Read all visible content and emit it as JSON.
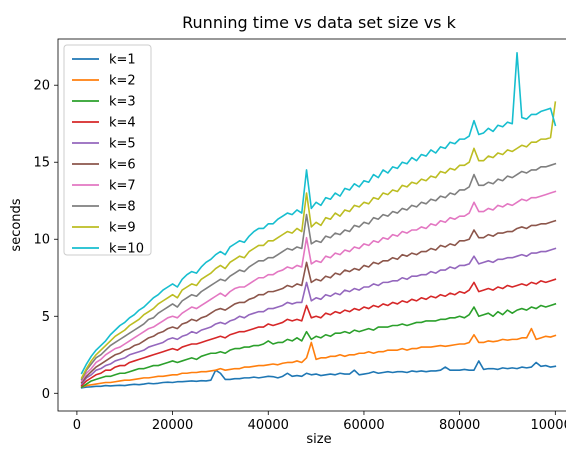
{
  "chart_data": {
    "type": "line",
    "title": "Running time vs data set size vs k",
    "xlabel": "size",
    "ylabel": "seconds",
    "xlim": [
      -3950,
      104950
    ],
    "ylim": [
      -1.15,
      23.0
    ],
    "xticks": [
      0,
      20000,
      40000,
      60000,
      80000,
      100000
    ],
    "yticks": [
      0,
      5,
      10,
      15,
      20
    ],
    "grid": false,
    "legend_position": "top-left",
    "x": [
      1000,
      2000,
      3000,
      4000,
      5000,
      6000,
      7000,
      8000,
      9000,
      10000,
      11000,
      12000,
      13000,
      14000,
      15000,
      16000,
      17000,
      18000,
      19000,
      20000,
      21000,
      22000,
      23000,
      24000,
      25000,
      26000,
      27000,
      28000,
      29000,
      30000,
      31000,
      32000,
      33000,
      34000,
      35000,
      36000,
      37000,
      38000,
      39000,
      40000,
      41000,
      42000,
      43000,
      44000,
      45000,
      46000,
      47000,
      48000,
      49000,
      50000,
      51000,
      52000,
      53000,
      54000,
      55000,
      56000,
      57000,
      58000,
      59000,
      60000,
      61000,
      62000,
      63000,
      64000,
      65000,
      66000,
      67000,
      68000,
      69000,
      70000,
      71000,
      72000,
      73000,
      74000,
      75000,
      76000,
      77000,
      78000,
      79000,
      80000,
      81000,
      82000,
      83000,
      84000,
      85000,
      86000,
      87000,
      88000,
      89000,
      90000,
      91000,
      92000,
      93000,
      94000,
      95000,
      96000,
      97000,
      98000,
      99000,
      100000
    ],
    "series": [
      {
        "name": "k=1",
        "color": "#1f77b4",
        "values": [
          0.35,
          0.4,
          0.42,
          0.45,
          0.45,
          0.5,
          0.48,
          0.5,
          0.52,
          0.5,
          0.55,
          0.58,
          0.56,
          0.6,
          0.65,
          0.62,
          0.65,
          0.7,
          0.72,
          0.7,
          0.75,
          0.75,
          0.78,
          0.8,
          0.78,
          0.82,
          0.8,
          0.85,
          1.5,
          1.3,
          0.9,
          0.9,
          0.95,
          0.95,
          1.0,
          1.0,
          1.05,
          1.0,
          1.05,
          1.1,
          1.08,
          1.0,
          1.1,
          1.3,
          1.1,
          1.15,
          1.1,
          1.3,
          1.2,
          1.25,
          1.15,
          1.2,
          1.25,
          1.2,
          1.3,
          1.25,
          1.25,
          1.5,
          1.2,
          1.25,
          1.3,
          1.4,
          1.3,
          1.35,
          1.4,
          1.35,
          1.4,
          1.4,
          1.35,
          1.45,
          1.4,
          1.45,
          1.4,
          1.45,
          1.45,
          1.5,
          1.7,
          1.5,
          1.5,
          1.5,
          1.55,
          1.5,
          1.5,
          2.1,
          1.55,
          1.6,
          1.6,
          1.55,
          1.65,
          1.6,
          1.65,
          1.6,
          1.7,
          1.65,
          1.7,
          2.0,
          1.75,
          1.8,
          1.7,
          1.75
        ]
      },
      {
        "name": "k=2",
        "color": "#ff7f0e",
        "values": [
          0.4,
          0.5,
          0.55,
          0.6,
          0.65,
          0.7,
          0.7,
          0.75,
          0.8,
          0.85,
          0.85,
          0.9,
          0.95,
          1.0,
          1.0,
          1.05,
          1.1,
          1.1,
          1.15,
          1.2,
          1.2,
          1.3,
          1.3,
          1.35,
          1.35,
          1.4,
          1.4,
          1.45,
          1.5,
          1.6,
          1.5,
          1.55,
          1.6,
          1.6,
          1.7,
          1.7,
          1.75,
          1.8,
          1.8,
          1.85,
          1.9,
          1.85,
          1.95,
          2.0,
          2.0,
          2.1,
          2.0,
          2.3,
          3.3,
          2.2,
          2.3,
          2.3,
          2.4,
          2.4,
          2.5,
          2.4,
          2.5,
          2.5,
          2.6,
          2.6,
          2.7,
          2.6,
          2.7,
          2.7,
          2.8,
          2.8,
          2.8,
          2.9,
          2.8,
          2.9,
          2.9,
          3.0,
          3.0,
          3.0,
          3.05,
          3.1,
          3.05,
          3.1,
          3.15,
          3.2,
          3.2,
          3.3,
          3.8,
          3.3,
          3.3,
          3.4,
          3.35,
          3.4,
          3.5,
          3.45,
          3.5,
          3.5,
          3.6,
          3.6,
          4.2,
          3.5,
          3.6,
          3.7,
          3.65,
          3.75
        ]
      },
      {
        "name": "k=3",
        "color": "#2ca02c",
        "values": [
          0.4,
          0.6,
          0.8,
          0.9,
          1.0,
          1.1,
          1.1,
          1.2,
          1.3,
          1.3,
          1.4,
          1.5,
          1.6,
          1.6,
          1.7,
          1.8,
          1.8,
          1.9,
          2.0,
          2.1,
          2.0,
          2.1,
          2.2,
          2.3,
          2.2,
          2.4,
          2.5,
          2.6,
          2.6,
          2.7,
          2.6,
          2.8,
          2.9,
          2.9,
          3.0,
          3.0,
          3.1,
          3.1,
          3.2,
          3.4,
          3.2,
          3.3,
          3.3,
          3.5,
          3.4,
          3.6,
          3.4,
          4.0,
          3.5,
          3.7,
          3.6,
          3.8,
          3.7,
          3.9,
          3.9,
          4.0,
          3.9,
          4.1,
          4.0,
          4.1,
          4.2,
          4.1,
          4.3,
          4.3,
          4.3,
          4.4,
          4.4,
          4.5,
          4.4,
          4.5,
          4.6,
          4.6,
          4.7,
          4.7,
          4.7,
          4.8,
          4.8,
          4.9,
          4.9,
          5.0,
          4.9,
          5.1,
          5.6,
          5.0,
          5.1,
          5.2,
          5.0,
          5.3,
          5.1,
          5.4,
          5.2,
          5.4,
          5.5,
          5.4,
          5.6,
          5.5,
          5.7,
          5.6,
          5.7,
          5.8
        ]
      },
      {
        "name": "k=4",
        "color": "#d62728",
        "values": [
          0.5,
          0.8,
          1.0,
          1.2,
          1.3,
          1.5,
          1.5,
          1.7,
          1.8,
          1.8,
          2.0,
          2.1,
          2.2,
          2.3,
          2.4,
          2.5,
          2.6,
          2.7,
          2.8,
          2.9,
          2.8,
          3.0,
          3.1,
          3.2,
          3.2,
          3.3,
          3.4,
          3.5,
          3.6,
          3.7,
          3.6,
          3.8,
          3.9,
          4.0,
          4.0,
          4.1,
          4.2,
          4.3,
          4.3,
          4.5,
          4.4,
          4.5,
          4.6,
          4.8,
          4.7,
          4.8,
          4.7,
          5.7,
          4.9,
          5.0,
          4.9,
          5.2,
          5.1,
          5.3,
          5.2,
          5.4,
          5.3,
          5.5,
          5.4,
          5.6,
          5.5,
          5.7,
          5.6,
          5.8,
          5.7,
          5.9,
          5.8,
          6.0,
          5.9,
          6.1,
          6.0,
          6.2,
          6.1,
          6.3,
          6.2,
          6.4,
          6.3,
          6.5,
          6.4,
          6.6,
          6.5,
          6.7,
          7.2,
          6.6,
          6.7,
          6.8,
          6.7,
          6.9,
          6.8,
          7.0,
          6.9,
          7.0,
          7.1,
          7.0,
          7.2,
          7.1,
          7.3,
          7.2,
          7.3,
          7.4
        ]
      },
      {
        "name": "k=5",
        "color": "#9467bd",
        "values": [
          0.6,
          1.0,
          1.2,
          1.5,
          1.6,
          1.8,
          1.9,
          2.1,
          2.2,
          2.3,
          2.5,
          2.6,
          2.7,
          2.8,
          3.0,
          3.1,
          3.2,
          3.3,
          3.5,
          3.6,
          3.5,
          3.7,
          3.8,
          4.0,
          3.9,
          4.1,
          4.2,
          4.3,
          4.5,
          4.6,
          4.5,
          4.7,
          4.8,
          5.0,
          4.9,
          5.1,
          5.2,
          5.3,
          5.3,
          5.5,
          5.5,
          5.6,
          5.7,
          5.9,
          5.8,
          5.9,
          5.9,
          7.2,
          6.0,
          6.2,
          6.1,
          6.4,
          6.3,
          6.5,
          6.4,
          6.7,
          6.6,
          6.8,
          6.7,
          6.9,
          6.9,
          7.1,
          7.0,
          7.2,
          7.2,
          7.3,
          7.3,
          7.5,
          7.4,
          7.6,
          7.6,
          7.7,
          7.7,
          7.9,
          7.8,
          8.0,
          8.0,
          8.2,
          8.1,
          8.3,
          8.3,
          8.4,
          8.9,
          8.4,
          8.5,
          8.6,
          8.5,
          8.7,
          8.7,
          8.8,
          8.8,
          8.9,
          9.0,
          8.9,
          9.1,
          9.1,
          9.2,
          9.2,
          9.3,
          9.4
        ]
      },
      {
        "name": "k=6",
        "color": "#8c564b",
        "values": [
          0.7,
          1.1,
          1.4,
          1.7,
          1.9,
          2.1,
          2.3,
          2.5,
          2.6,
          2.8,
          2.9,
          3.1,
          3.2,
          3.4,
          3.6,
          3.7,
          3.9,
          4.0,
          4.2,
          4.3,
          4.2,
          4.5,
          4.6,
          4.8,
          4.7,
          4.9,
          5.0,
          5.2,
          5.4,
          5.5,
          5.4,
          5.6,
          5.8,
          5.9,
          5.9,
          6.1,
          6.2,
          6.4,
          6.4,
          6.6,
          6.6,
          6.7,
          6.8,
          7.0,
          6.9,
          7.1,
          7.0,
          8.5,
          7.2,
          7.4,
          7.3,
          7.6,
          7.5,
          7.8,
          7.7,
          8.0,
          7.9,
          8.1,
          8.0,
          8.3,
          8.2,
          8.5,
          8.4,
          8.6,
          8.6,
          8.8,
          8.7,
          9.0,
          8.9,
          9.1,
          9.0,
          9.2,
          9.2,
          9.4,
          9.3,
          9.6,
          9.5,
          9.7,
          9.6,
          9.9,
          9.9,
          10.0,
          10.6,
          10.1,
          10.1,
          10.3,
          10.2,
          10.4,
          10.4,
          10.5,
          10.5,
          10.7,
          10.8,
          10.7,
          10.9,
          10.9,
          11.0,
          11.0,
          11.1,
          11.2
        ]
      },
      {
        "name": "k=7",
        "color": "#e377c2",
        "values": [
          0.8,
          1.3,
          1.6,
          2.0,
          2.2,
          2.5,
          2.7,
          2.9,
          3.0,
          3.2,
          3.4,
          3.6,
          3.8,
          4.0,
          4.2,
          4.3,
          4.5,
          4.7,
          4.9,
          5.0,
          4.9,
          5.2,
          5.4,
          5.6,
          5.5,
          5.7,
          5.9,
          6.1,
          6.3,
          6.5,
          6.3,
          6.6,
          6.8,
          6.9,
          6.9,
          7.1,
          7.3,
          7.5,
          7.5,
          7.7,
          7.7,
          7.9,
          8.0,
          8.2,
          8.1,
          8.3,
          8.2,
          10.1,
          8.4,
          8.6,
          8.5,
          8.9,
          8.8,
          9.1,
          9.0,
          9.3,
          9.2,
          9.5,
          9.4,
          9.7,
          9.6,
          9.9,
          9.8,
          10.1,
          10.0,
          10.3,
          10.2,
          10.5,
          10.4,
          10.6,
          10.6,
          10.8,
          10.7,
          11.0,
          10.9,
          11.2,
          11.1,
          11.4,
          11.3,
          11.5,
          11.5,
          11.7,
          12.4,
          11.8,
          11.8,
          12.0,
          11.9,
          12.2,
          12.1,
          12.3,
          12.2,
          12.4,
          12.6,
          12.5,
          12.7,
          12.7,
          12.8,
          12.9,
          13.0,
          13.1
        ]
      },
      {
        "name": "k=8",
        "color": "#7f7f7f",
        "values": [
          0.9,
          1.5,
          1.9,
          2.3,
          2.5,
          2.8,
          3.1,
          3.3,
          3.5,
          3.7,
          3.9,
          4.1,
          4.3,
          4.5,
          4.8,
          4.9,
          5.2,
          5.4,
          5.6,
          5.8,
          5.6,
          6.0,
          6.2,
          6.4,
          6.3,
          6.6,
          6.8,
          7.0,
          7.2,
          7.4,
          7.3,
          7.6,
          7.8,
          8.0,
          7.9,
          8.2,
          8.4,
          8.6,
          8.6,
          8.8,
          8.8,
          9.0,
          9.2,
          9.4,
          9.3,
          9.5,
          9.4,
          11.6,
          9.7,
          9.9,
          9.8,
          10.2,
          10.1,
          10.4,
          10.3,
          10.6,
          10.5,
          10.9,
          10.8,
          11.1,
          11.0,
          11.4,
          11.3,
          11.6,
          11.5,
          11.8,
          11.7,
          12.0,
          11.9,
          12.2,
          12.1,
          12.4,
          12.3,
          12.6,
          12.5,
          12.8,
          12.7,
          13.0,
          12.9,
          13.2,
          13.2,
          13.4,
          14.2,
          13.5,
          13.5,
          13.7,
          13.6,
          13.9,
          13.8,
          14.1,
          14.0,
          14.2,
          14.4,
          14.3,
          14.5,
          14.5,
          14.7,
          14.7,
          14.8,
          14.9
        ]
      },
      {
        "name": "k=9",
        "color": "#bcbd22",
        "values": [
          1.0,
          1.6,
          2.1,
          2.5,
          2.8,
          3.1,
          3.4,
          3.7,
          3.9,
          4.1,
          4.4,
          4.6,
          4.8,
          5.1,
          5.3,
          5.5,
          5.8,
          6.0,
          6.2,
          6.4,
          6.2,
          6.7,
          6.9,
          7.1,
          7.0,
          7.4,
          7.6,
          7.8,
          8.1,
          8.3,
          8.1,
          8.5,
          8.7,
          8.9,
          8.8,
          9.2,
          9.4,
          9.6,
          9.6,
          9.9,
          9.9,
          10.1,
          10.3,
          10.5,
          10.4,
          10.7,
          10.5,
          13.0,
          10.8,
          11.1,
          10.9,
          11.4,
          11.3,
          11.7,
          11.5,
          11.9,
          11.8,
          12.2,
          12.1,
          12.4,
          12.3,
          12.7,
          12.6,
          13.0,
          12.9,
          13.2,
          13.1,
          13.5,
          13.4,
          13.7,
          13.6,
          13.9,
          13.8,
          14.1,
          14.0,
          14.4,
          14.3,
          14.6,
          14.5,
          14.8,
          14.8,
          15.0,
          15.9,
          15.1,
          15.1,
          15.4,
          15.3,
          15.6,
          15.5,
          15.8,
          15.7,
          15.9,
          16.1,
          16.0,
          16.3,
          16.3,
          16.5,
          16.5,
          16.6,
          18.9
        ]
      },
      {
        "name": "k=10",
        "color": "#17becf",
        "values": [
          1.3,
          1.9,
          2.4,
          2.8,
          3.1,
          3.4,
          3.8,
          4.1,
          4.4,
          4.6,
          4.9,
          5.1,
          5.4,
          5.6,
          5.9,
          6.2,
          6.4,
          6.7,
          6.9,
          7.1,
          6.9,
          7.4,
          7.7,
          7.9,
          7.8,
          8.2,
          8.5,
          8.7,
          9.0,
          9.2,
          9.0,
          9.5,
          9.7,
          9.9,
          9.8,
          10.2,
          10.5,
          10.7,
          10.7,
          11.0,
          11.0,
          11.3,
          11.5,
          11.7,
          11.6,
          11.9,
          11.7,
          14.5,
          12.0,
          12.4,
          12.2,
          12.7,
          12.6,
          13.0,
          12.8,
          13.3,
          13.2,
          13.6,
          13.4,
          13.8,
          13.7,
          14.2,
          14.0,
          14.5,
          14.3,
          14.7,
          14.6,
          15.0,
          14.9,
          15.3,
          15.1,
          15.5,
          15.4,
          15.8,
          15.6,
          16.0,
          15.9,
          16.3,
          16.2,
          16.5,
          16.5,
          16.7,
          17.7,
          16.8,
          16.9,
          17.2,
          17.0,
          17.4,
          17.3,
          17.6,
          17.5,
          22.1,
          17.9,
          17.8,
          18.1,
          18.1,
          18.3,
          18.4,
          18.5,
          17.4
        ]
      }
    ]
  }
}
